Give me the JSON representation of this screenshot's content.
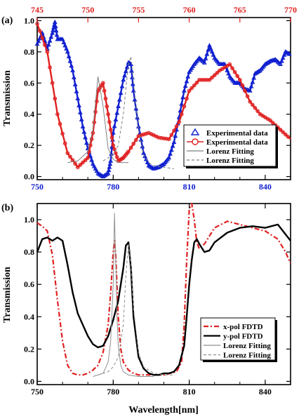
{
  "chart_data": [
    {
      "panel_label": "(a)",
      "type": "line",
      "xlim_bottom": [
        750,
        850
      ],
      "xticks_bottom": [
        "750",
        "780",
        "810",
        "840"
      ],
      "xlim_top": [
        745,
        770
      ],
      "xticks_top": [
        "745",
        "750",
        "755",
        "760",
        "765",
        "770"
      ],
      "ylabel": "Transmission",
      "ylim": [
        -0.02,
        1.02
      ],
      "yticks": [
        "0.0",
        "0.2",
        "0.4",
        "0.6",
        "0.8",
        "1.0"
      ],
      "legend_position": "lower-right",
      "colors": {
        "blue": "#1020d0",
        "red": "#e02020",
        "top_axis": "#e02020"
      },
      "series": [
        {
          "name": "Experimental data",
          "axis": "bottom",
          "marker": "triangle",
          "color": "#1020d0",
          "x": [
            750,
            752,
            754,
            756,
            757,
            758,
            760,
            762,
            764,
            766,
            768,
            770,
            772,
            774,
            776,
            778,
            779,
            780,
            782,
            784,
            786,
            787,
            788,
            790,
            792,
            794,
            796,
            798,
            800,
            802,
            804,
            806,
            808,
            810,
            812,
            814,
            816,
            818,
            820,
            822,
            824,
            826,
            828,
            830,
            832,
            834,
            836,
            838,
            840,
            842,
            844,
            846,
            848,
            850
          ],
          "y": [
            0.85,
            0.92,
            0.82,
            0.92,
            0.99,
            0.88,
            0.88,
            0.8,
            0.68,
            0.5,
            0.32,
            0.18,
            0.08,
            0.02,
            0.0,
            0.02,
            0.1,
            0.28,
            0.45,
            0.62,
            0.73,
            0.72,
            0.55,
            0.32,
            0.15,
            0.07,
            0.05,
            0.06,
            0.08,
            0.12,
            0.22,
            0.38,
            0.55,
            0.67,
            0.72,
            0.76,
            0.73,
            0.84,
            0.76,
            0.72,
            0.72,
            0.64,
            0.6,
            0.6,
            0.56,
            0.55,
            0.66,
            0.68,
            0.72,
            0.74,
            0.75,
            0.72,
            0.8,
            0.78
          ]
        },
        {
          "name": "Experimental data",
          "axis": "top",
          "marker": "circle",
          "color": "#e02020",
          "x": [
            745,
            746,
            747,
            748,
            749,
            750,
            750.5,
            751,
            751.5,
            752,
            752.5,
            753,
            753.5,
            754,
            755,
            756,
            757,
            758,
            759,
            760,
            761,
            762,
            763,
            764,
            765,
            766,
            767,
            768,
            769,
            770
          ],
          "y": [
            0.98,
            0.8,
            0.4,
            0.15,
            0.06,
            0.12,
            0.28,
            0.55,
            0.6,
            0.4,
            0.2,
            0.1,
            0.12,
            0.16,
            0.26,
            0.28,
            0.25,
            0.24,
            0.35,
            0.55,
            0.62,
            0.62,
            0.68,
            0.72,
            0.62,
            0.48,
            0.4,
            0.36,
            0.3,
            0.24
          ]
        },
        {
          "name": "Lorenz Fitting",
          "axis": "top",
          "style": "solid",
          "color": "#808080",
          "x": [
            748,
            749,
            750,
            750.5,
            751,
            751.5,
            752,
            752.5,
            753,
            753.5,
            754
          ],
          "y": [
            0.09,
            0.1,
            0.16,
            0.3,
            0.64,
            0.45,
            0.18,
            0.11,
            0.09,
            0.09,
            0.09
          ]
        },
        {
          "name": "Lorenz Fitting",
          "axis": "bottom",
          "style": "dashed",
          "color": "#808080",
          "x": [
            776,
            778,
            780,
            782,
            784,
            786,
            787,
            788,
            790,
            792,
            794,
            796,
            800,
            804
          ],
          "y": [
            0.1,
            0.12,
            0.14,
            0.2,
            0.4,
            0.72,
            0.77,
            0.6,
            0.3,
            0.14,
            0.09,
            0.07,
            0.06,
            0.05
          ]
        }
      ]
    },
    {
      "panel_label": "(b)",
      "type": "line",
      "xlabel": "Wavelength[nm]",
      "xlim": [
        750,
        850
      ],
      "xticks": [
        "750",
        "780",
        "810",
        "840"
      ],
      "ylabel": "Transmission",
      "ylim": [
        -0.02,
        1.1
      ],
      "yticks": [
        "0.0",
        "0.2",
        "0.4",
        "0.6",
        "0.8",
        "1.0"
      ],
      "legend_position": "lower-right",
      "series": [
        {
          "name": "x-pol  FDTD",
          "style": "dash-dot",
          "color": "#e02020",
          "x": [
            750,
            752,
            754,
            756,
            758,
            760,
            762,
            764,
            766,
            768,
            770,
            772,
            774,
            776,
            778,
            779,
            780,
            780.5,
            781,
            782,
            783,
            784,
            786,
            788,
            790,
            795,
            800,
            805,
            807,
            808,
            809,
            810,
            811,
            812,
            813,
            814,
            816,
            818,
            820,
            825,
            830,
            835,
            840,
            843,
            845,
            848,
            850
          ],
          "y": [
            0.98,
            0.96,
            0.93,
            0.78,
            0.5,
            0.25,
            0.1,
            0.05,
            0.04,
            0.04,
            0.05,
            0.07,
            0.1,
            0.18,
            0.35,
            0.55,
            0.8,
            0.87,
            0.78,
            0.4,
            0.2,
            0.12,
            0.07,
            0.05,
            0.04,
            0.04,
            0.04,
            0.06,
            0.12,
            0.35,
            0.75,
            1.06,
            1.1,
            1.0,
            0.86,
            0.82,
            0.85,
            0.9,
            0.95,
            0.99,
            0.97,
            0.95,
            0.93,
            0.9,
            0.88,
            0.8,
            0.73
          ]
        },
        {
          "name": "y-pol  FDTD",
          "style": "solid",
          "color": "#000000",
          "x": [
            750,
            752,
            754,
            756,
            758,
            760,
            762,
            764,
            766,
            768,
            770,
            772,
            774,
            776,
            778,
            780,
            782,
            784,
            785,
            786,
            787,
            788,
            790,
            792,
            794,
            796,
            798,
            800,
            802,
            804,
            806,
            808,
            809,
            810,
            811,
            812,
            813,
            814,
            816,
            818,
            820,
            825,
            830,
            835,
            840,
            845,
            850
          ],
          "y": [
            0.8,
            0.88,
            0.89,
            0.87,
            0.89,
            0.87,
            0.72,
            0.55,
            0.42,
            0.35,
            0.28,
            0.23,
            0.21,
            0.22,
            0.28,
            0.38,
            0.5,
            0.7,
            0.84,
            0.86,
            0.7,
            0.4,
            0.15,
            0.08,
            0.05,
            0.04,
            0.04,
            0.05,
            0.05,
            0.06,
            0.1,
            0.22,
            0.4,
            0.6,
            0.75,
            0.86,
            0.88,
            0.85,
            0.8,
            0.81,
            0.86,
            0.92,
            0.95,
            0.96,
            0.95,
            0.97,
            0.87
          ]
        },
        {
          "name": "Lorenz Fitting",
          "style": "solid",
          "color": "#909090",
          "x": [
            772,
            776,
            778,
            779,
            780,
            780.5,
            781,
            781.5,
            782,
            783,
            784,
            786,
            790,
            796
          ],
          "y": [
            0.03,
            0.05,
            0.12,
            0.25,
            0.6,
            1.04,
            0.75,
            0.4,
            0.22,
            0.1,
            0.06,
            0.04,
            0.03,
            0.03
          ]
        },
        {
          "name": "Lorenz Fitting",
          "style": "dashed",
          "color": "#909090",
          "x": [
            774,
            778,
            780,
            782,
            784,
            785,
            786,
            787,
            788,
            790,
            792,
            796,
            800,
            804
          ],
          "y": [
            0.04,
            0.06,
            0.09,
            0.15,
            0.35,
            0.65,
            0.85,
            0.72,
            0.45,
            0.18,
            0.09,
            0.05,
            0.04,
            0.04
          ]
        }
      ]
    }
  ]
}
